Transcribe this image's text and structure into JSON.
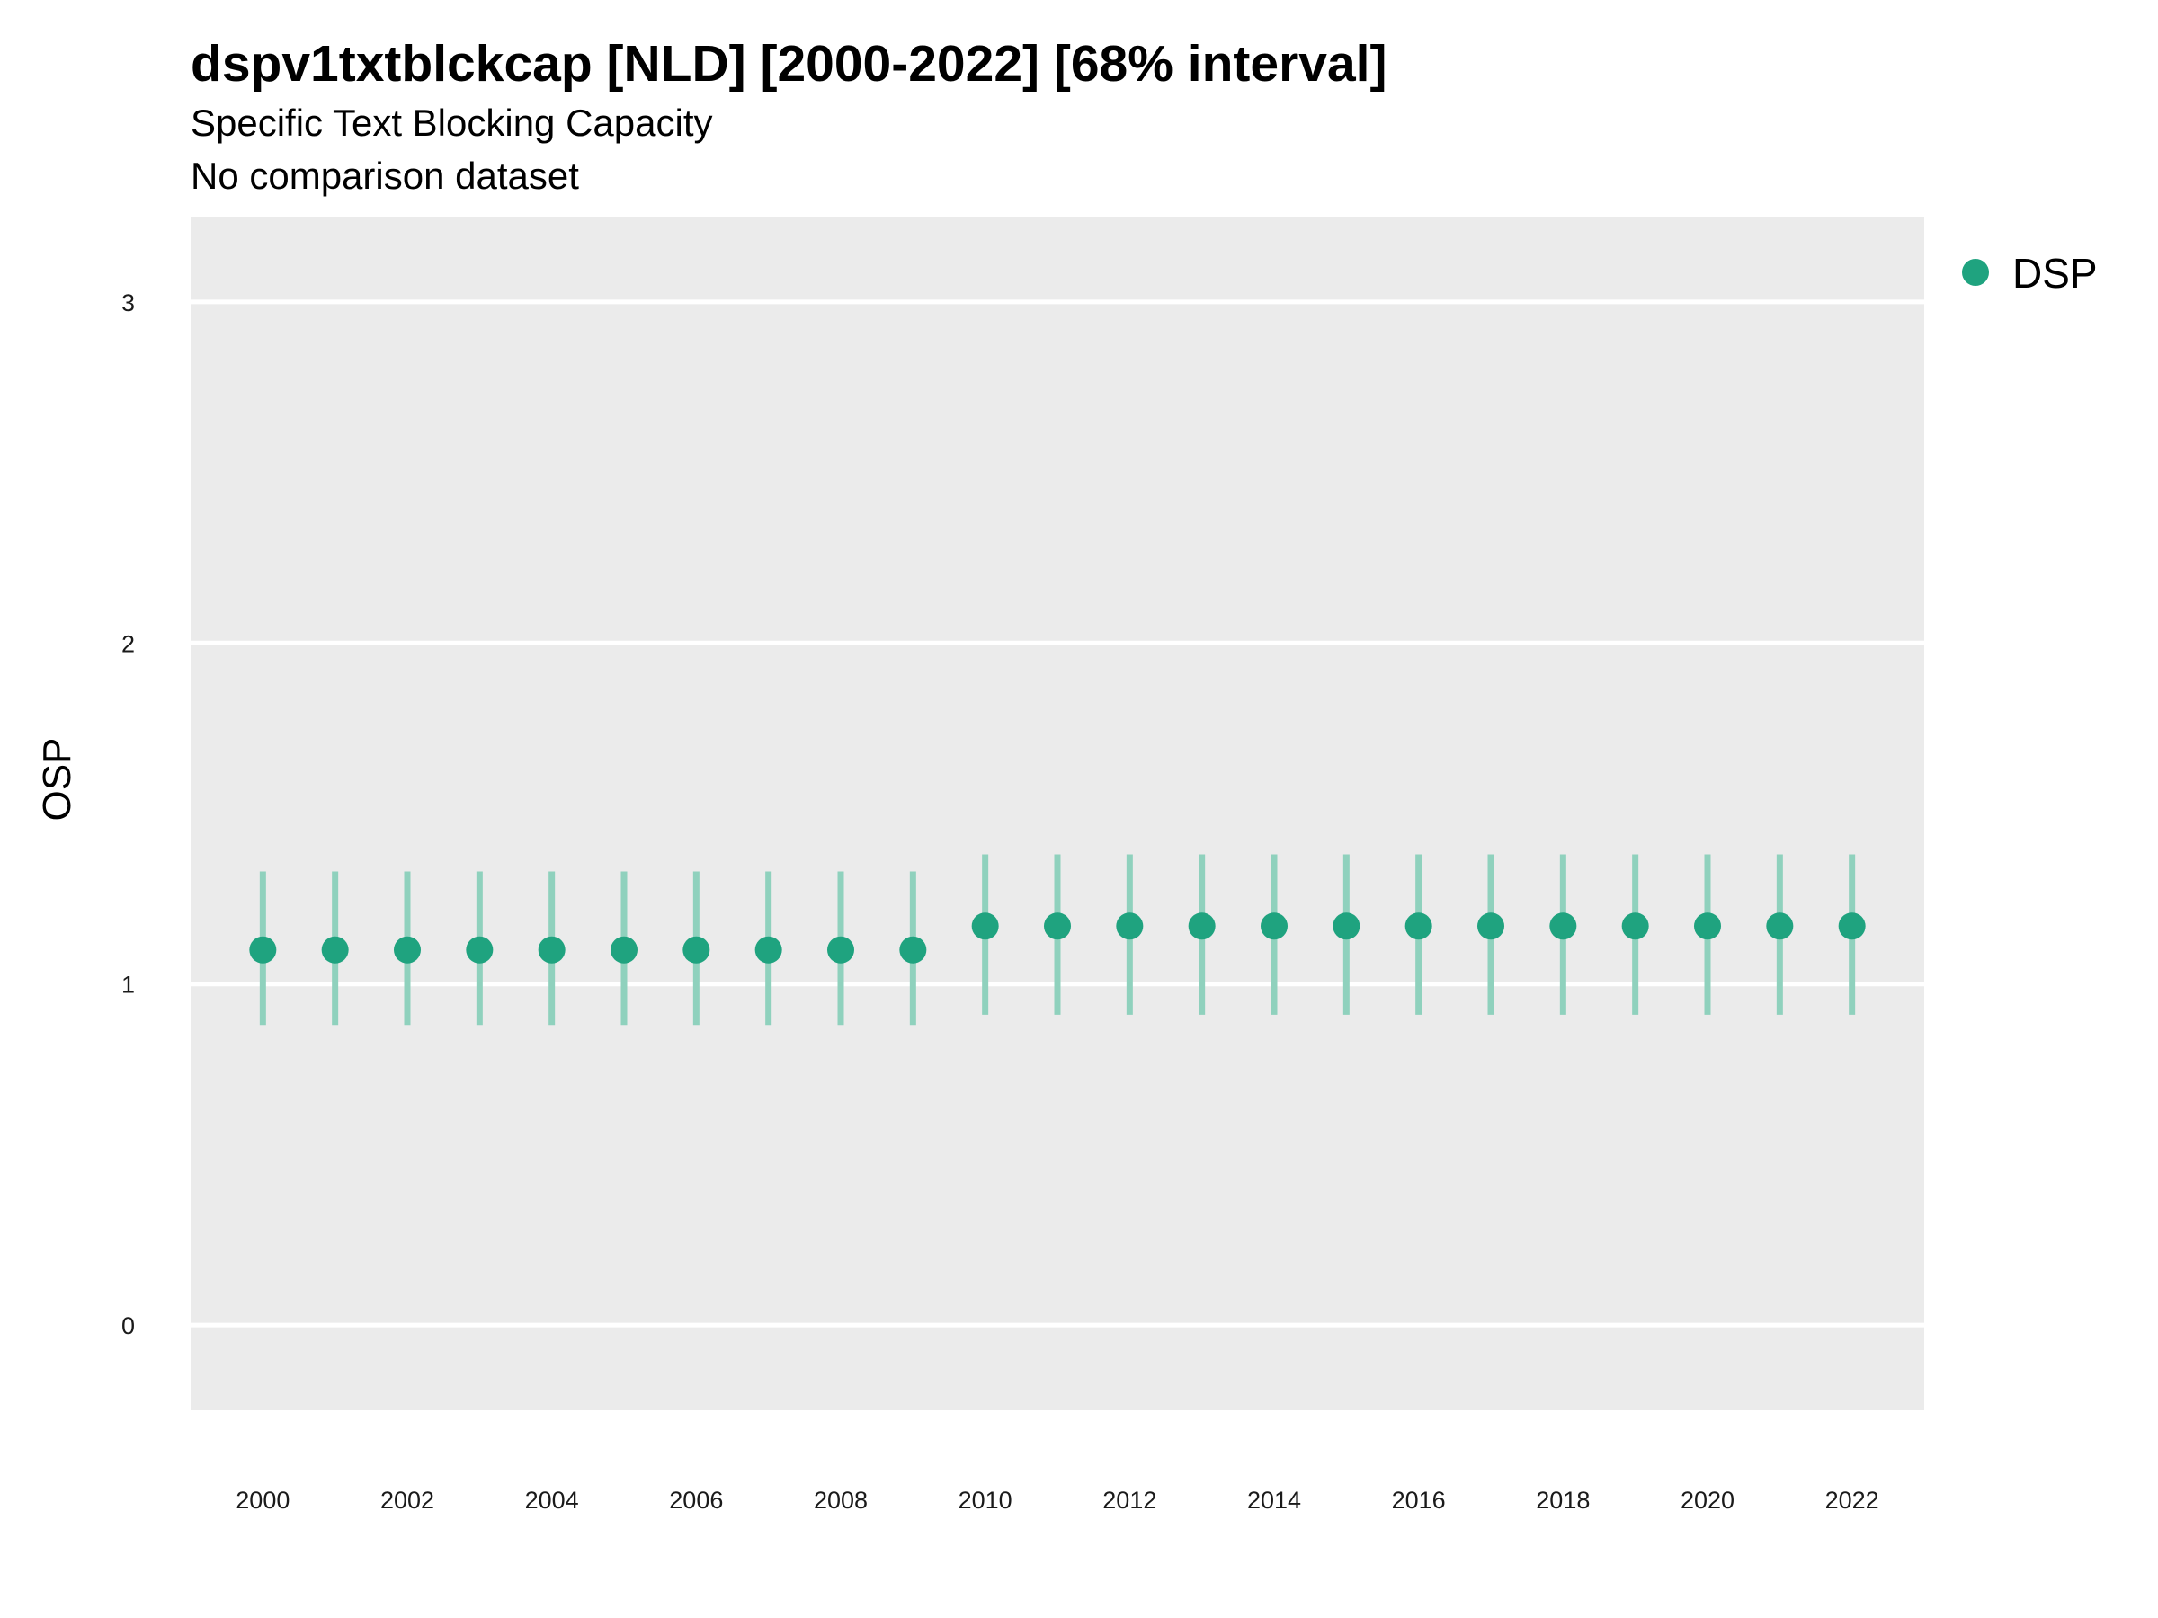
{
  "chart_data": {
    "type": "scatter",
    "title": "dspv1txtblckcap [NLD] [2000-2022] [68% interval]",
    "subtitle": "Specific Text Blocking Capacity",
    "caption": "No comparison dataset",
    "xlabel": "",
    "ylabel": "OSP",
    "xlim": [
      1999,
      2023
    ],
    "ylim": [
      -0.25,
      3.25
    ],
    "x_ticks": [
      2000,
      2002,
      2004,
      2006,
      2008,
      2010,
      2012,
      2014,
      2016,
      2018,
      2020,
      2022
    ],
    "y_ticks": [
      0,
      1,
      2,
      3
    ],
    "grid": true,
    "legend_position": "top-right",
    "colors": {
      "point": "#1fa37f",
      "interval": "#8fd1bd",
      "panel": "#ebebeb",
      "grid": "#ffffff"
    },
    "series": [
      {
        "name": "DSP",
        "x": [
          2000,
          2001,
          2002,
          2003,
          2004,
          2005,
          2006,
          2007,
          2008,
          2009,
          2010,
          2011,
          2012,
          2013,
          2014,
          2015,
          2016,
          2017,
          2018,
          2019,
          2020,
          2021,
          2022
        ],
        "y": [
          1.1,
          1.1,
          1.1,
          1.1,
          1.1,
          1.1,
          1.1,
          1.1,
          1.1,
          1.1,
          1.17,
          1.17,
          1.17,
          1.17,
          1.17,
          1.17,
          1.17,
          1.17,
          1.17,
          1.17,
          1.17,
          1.17,
          1.17
        ],
        "lower": [
          0.88,
          0.88,
          0.88,
          0.88,
          0.88,
          0.88,
          0.88,
          0.88,
          0.88,
          0.88,
          0.91,
          0.91,
          0.91,
          0.91,
          0.91,
          0.91,
          0.91,
          0.91,
          0.91,
          0.91,
          0.91,
          0.91,
          0.91
        ],
        "upper": [
          1.33,
          1.33,
          1.33,
          1.33,
          1.33,
          1.33,
          1.33,
          1.33,
          1.33,
          1.33,
          1.38,
          1.38,
          1.38,
          1.38,
          1.38,
          1.38,
          1.38,
          1.38,
          1.38,
          1.38,
          1.38,
          1.38,
          1.38
        ]
      }
    ]
  }
}
